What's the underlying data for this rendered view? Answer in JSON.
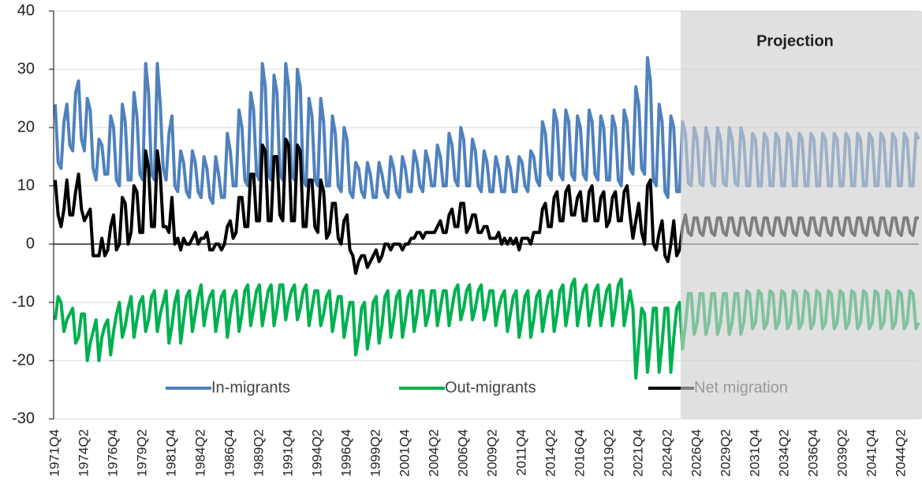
{
  "chart_data": {
    "type": "line",
    "annotation": "Projection",
    "categories": [
      "1971Q4",
      null,
      null,
      null,
      null,
      null,
      null,
      null,
      null,
      null,
      "1974Q2",
      null,
      null,
      null,
      null,
      null,
      null,
      null,
      null,
      null,
      "1976Q4",
      null,
      null,
      null,
      null,
      null,
      null,
      null,
      null,
      null,
      "1979Q2",
      null,
      null,
      null,
      null,
      null,
      null,
      null,
      null,
      null,
      "1981Q4",
      null,
      null,
      null,
      null,
      null,
      null,
      null,
      null,
      null,
      "1984Q2",
      null,
      null,
      null,
      null,
      null,
      null,
      null,
      null,
      null,
      "1986Q4",
      null,
      null,
      null,
      null,
      null,
      null,
      null,
      null,
      null,
      "1989Q2",
      null,
      null,
      null,
      null,
      null,
      null,
      null,
      null,
      null,
      "1991Q4",
      null,
      null,
      null,
      null,
      null,
      null,
      null,
      null,
      null,
      "1994Q2",
      null,
      null,
      null,
      null,
      null,
      null,
      null,
      null,
      null,
      "1996Q4",
      null,
      null,
      null,
      null,
      null,
      null,
      null,
      null,
      null,
      "1999Q2",
      null,
      null,
      null,
      null,
      null,
      null,
      null,
      null,
      null,
      "2001Q4",
      null,
      null,
      null,
      null,
      null,
      null,
      null,
      null,
      null,
      "2004Q2",
      null,
      null,
      null,
      null,
      null,
      null,
      null,
      null,
      null,
      "2006Q4",
      null,
      null,
      null,
      null,
      null,
      null,
      null,
      null,
      null,
      "2009Q2",
      null,
      null,
      null,
      null,
      null,
      null,
      null,
      null,
      null,
      "2011Q4",
      null,
      null,
      null,
      null,
      null,
      null,
      null,
      null,
      null,
      "2014Q2",
      null,
      null,
      null,
      null,
      null,
      null,
      null,
      null,
      null,
      "2016Q4",
      null,
      null,
      null,
      null,
      null,
      null,
      null,
      null,
      null,
      "2019Q2",
      null,
      null,
      null,
      null,
      null,
      null,
      null,
      null,
      null,
      "2021Q4",
      null,
      null,
      null,
      null,
      null,
      null,
      null,
      null,
      null,
      "2024Q2",
      null,
      null,
      null,
      null,
      null,
      null,
      null,
      null,
      null,
      "2026Q4",
      null,
      null,
      null,
      null,
      null,
      null,
      null,
      null,
      null,
      "2029Q2",
      null,
      null,
      null,
      null,
      null,
      null,
      null,
      null,
      null,
      "2031Q4",
      null,
      null,
      null,
      null,
      null,
      null,
      null,
      null,
      null,
      "2034Q2",
      null,
      null,
      null,
      null,
      null,
      null,
      null,
      null,
      null,
      "2036Q4",
      null,
      null,
      null,
      null,
      null,
      null,
      null,
      null,
      null,
      "2039Q2",
      null,
      null,
      null,
      null,
      null,
      null,
      null,
      null,
      null,
      "2041Q4",
      null,
      null,
      null,
      null,
      null,
      null,
      null,
      null,
      null,
      "2044Q2",
      null,
      null,
      null,
      null,
      null,
      null
    ],
    "series": [
      {
        "name": "In-migrants",
        "color": "#4f81bd",
        "values": [
          24,
          14,
          13,
          21,
          24,
          17,
          16,
          26,
          28,
          18,
          16,
          25,
          23,
          13,
          11,
          18,
          17,
          12,
          12,
          22,
          20,
          11,
          10,
          24,
          21,
          11,
          11,
          26,
          22,
          12,
          11,
          31,
          26,
          12,
          11,
          31,
          24,
          13,
          11,
          19,
          22,
          10,
          9,
          16,
          14,
          9,
          8,
          16,
          14,
          9,
          8,
          15,
          13,
          8,
          7,
          15,
          12,
          8,
          8,
          19,
          16,
          10,
          10,
          23,
          20,
          11,
          10,
          26,
          23,
          12,
          11,
          31,
          27,
          12,
          11,
          29,
          26,
          12,
          11,
          31,
          27,
          12,
          11,
          30,
          27,
          11,
          10,
          25,
          22,
          11,
          10,
          25,
          21,
          10,
          10,
          22,
          19,
          10,
          9,
          20,
          18,
          9,
          8,
          14,
          13,
          9,
          8,
          14,
          12,
          8,
          8,
          14,
          12,
          9,
          8,
          15,
          13,
          9,
          8,
          15,
          13,
          9,
          9,
          16,
          14,
          10,
          9,
          16,
          14,
          10,
          10,
          17,
          15,
          10,
          10,
          19,
          17,
          11,
          10,
          20,
          18,
          10,
          10,
          18,
          16,
          10,
          9,
          16,
          14,
          9,
          9,
          15,
          13,
          9,
          9,
          15,
          13,
          9,
          9,
          15,
          14,
          10,
          9,
          16,
          15,
          11,
          10,
          21,
          19,
          12,
          11,
          23,
          21,
          12,
          11,
          23,
          21,
          12,
          11,
          22,
          20,
          12,
          11,
          23,
          21,
          12,
          11,
          22,
          20,
          11,
          11,
          22,
          20,
          11,
          10,
          23,
          21,
          13,
          12,
          27,
          24,
          13,
          12,
          32,
          28,
          11,
          10,
          24,
          21,
          9,
          8,
          22,
          20,
          9,
          9,
          21,
          19,
          10.5,
          10,
          20,
          18,
          10.5,
          10,
          20,
          18,
          10.5,
          10,
          20,
          18,
          10.5,
          10,
          20,
          18,
          10.5,
          10,
          20,
          18,
          10,
          10,
          19,
          18,
          10,
          10,
          19,
          18,
          10,
          10,
          19,
          18,
          10,
          10,
          19,
          18,
          10,
          10,
          19,
          18,
          10,
          10,
          19,
          18,
          10,
          10,
          19,
          18,
          10,
          10,
          19,
          18,
          10,
          10,
          19,
          18,
          10,
          10,
          19,
          18,
          10,
          10,
          19,
          18,
          10,
          10,
          19,
          18,
          10,
          10,
          19,
          18,
          10,
          10,
          19,
          18,
          10,
          10,
          19,
          18
        ]
      },
      {
        "name": "Out-migrants",
        "color": "#00b050",
        "values": [
          -13,
          -9,
          -10,
          -15,
          -13,
          -12,
          -11,
          -17,
          -16,
          -12,
          -12,
          -20,
          -17,
          -15,
          -13,
          -20,
          -16,
          -14,
          -13,
          -19,
          -15,
          -12,
          -10,
          -16,
          -14,
          -11,
          -9,
          -16,
          -13,
          -10,
          -9,
          -15,
          -13,
          -9,
          -8,
          -15,
          -12,
          -10,
          -8,
          -17,
          -14,
          -10,
          -8,
          -17,
          -13,
          -9,
          -8,
          -15,
          -12,
          -9,
          -7,
          -14,
          -11,
          -9,
          -8,
          -15,
          -12,
          -9,
          -8,
          -16,
          -12,
          -9,
          -8,
          -15,
          -12,
          -8,
          -7,
          -14,
          -11,
          -8,
          -7,
          -14,
          -11,
          -8,
          -7,
          -14,
          -11,
          -7,
          -7,
          -13,
          -10,
          -8,
          -7,
          -13,
          -11,
          -8,
          -7,
          -14,
          -11,
          -8,
          -8,
          -14,
          -12,
          -9,
          -8,
          -15,
          -12,
          -9,
          -9,
          -16,
          -13,
          -10,
          -10,
          -19,
          -16,
          -11,
          -10,
          -18,
          -15,
          -10,
          -9,
          -17,
          -14,
          -9,
          -8,
          -16,
          -13,
          -9,
          -8,
          -16,
          -13,
          -9,
          -8,
          -15,
          -12,
          -8,
          -8,
          -14,
          -12,
          -8,
          -8,
          -14,
          -11,
          -8,
          -8,
          -14,
          -11,
          -8,
          -7,
          -13,
          -11,
          -8,
          -7,
          -13,
          -11,
          -8,
          -7,
          -13,
          -11,
          -8,
          -8,
          -14,
          -11,
          -9,
          -8,
          -15,
          -12,
          -9,
          -8,
          -16,
          -13,
          -9,
          -8,
          -16,
          -13,
          -9,
          -8,
          -15,
          -12,
          -9,
          -8,
          -15,
          -12,
          -8,
          -7,
          -14,
          -11,
          -7,
          -6,
          -14,
          -11,
          -8,
          -7,
          -14,
          -11,
          -8,
          -7,
          -14,
          -11,
          -8,
          -7,
          -14,
          -11,
          -7,
          -6,
          -14,
          -11,
          -8,
          -11,
          -23,
          -17,
          -11,
          -12,
          -22,
          -17,
          -11,
          -11,
          -22,
          -17,
          -11,
          -11,
          -22,
          -16,
          -11,
          -10,
          -18,
          -14,
          -8.5,
          -8.5,
          -15.5,
          -13.5,
          -8.5,
          -8.5,
          -15.5,
          -13.5,
          -8.5,
          -8.5,
          -15.5,
          -13.5,
          -8.5,
          -8.5,
          -15.5,
          -13.5,
          -8.5,
          -8.5,
          -15.5,
          -13.5,
          -8,
          -8.5,
          -14.5,
          -13.5,
          -8,
          -8.5,
          -14.5,
          -13.5,
          -8,
          -8.5,
          -14.5,
          -13.5,
          -8,
          -8.5,
          -14.5,
          -13.5,
          -8,
          -8.5,
          -14.5,
          -13.5,
          -8,
          -8.5,
          -14.5,
          -13.5,
          -8,
          -8.5,
          -14.5,
          -13.5,
          -8,
          -8.5,
          -14.5,
          -13.5,
          -8,
          -8.5,
          -14.5,
          -13.5,
          -8,
          -8.5,
          -14.5,
          -13.5,
          -8,
          -8.5,
          -14.5,
          -13.5,
          -8,
          -8.5,
          -14.5,
          -13.5,
          -8,
          -8.5,
          -14.5,
          -13.5,
          -8,
          -8.5,
          -14.5,
          -13.5,
          -8,
          -8.5,
          -14.5,
          -13.5
        ]
      },
      {
        "name": "Net migration",
        "color": "#000000",
        "values": [
          11,
          5,
          3,
          6,
          11,
          5,
          5,
          9,
          12,
          6,
          4,
          5,
          6,
          -2,
          -2,
          -2,
          1,
          -2,
          -1,
          3,
          5,
          -1,
          0,
          8,
          7,
          0,
          2,
          10,
          9,
          2,
          2,
          16,
          13,
          3,
          3,
          16,
          12,
          3,
          3,
          2,
          8,
          0,
          1,
          -1,
          1,
          0,
          0,
          1,
          2,
          0,
          1,
          1,
          2,
          -1,
          -1,
          0,
          0,
          -1,
          0,
          3,
          4,
          1,
          2,
          8,
          8,
          3,
          3,
          12,
          12,
          4,
          4,
          17,
          16,
          4,
          4,
          15,
          15,
          5,
          4,
          18,
          17,
          4,
          4,
          17,
          16,
          3,
          3,
          11,
          11,
          3,
          2,
          11,
          9,
          1,
          2,
          7,
          7,
          1,
          0,
          4,
          5,
          -1,
          -2,
          -5,
          -3,
          -2,
          -2,
          -4,
          -3,
          -2,
          -1,
          -3,
          -2,
          0,
          0,
          -1,
          0,
          0,
          0,
          -1,
          0,
          0,
          1,
          1,
          2,
          2,
          1,
          2,
          2,
          2,
          2,
          3,
          4,
          2,
          2,
          5,
          6,
          3,
          3,
          7,
          7,
          2,
          3,
          5,
          5,
          2,
          2,
          3,
          3,
          1,
          1,
          1,
          2,
          0,
          1,
          0,
          1,
          0,
          1,
          -1,
          1,
          1,
          1,
          0,
          2,
          2,
          2,
          6,
          7,
          3,
          3,
          8,
          9,
          4,
          4,
          9,
          10,
          5,
          5,
          8,
          9,
          4,
          4,
          9,
          10,
          4,
          4,
          8,
          9,
          3,
          4,
          8,
          9,
          4,
          4,
          9,
          10,
          5,
          1,
          4,
          7,
          2,
          0,
          10,
          11,
          0,
          -1,
          2,
          4,
          -2,
          -3,
          0,
          4,
          -2,
          -1,
          3,
          5,
          2,
          1.5,
          4.5,
          4.5,
          2,
          1.5,
          4.5,
          4.5,
          2,
          1.5,
          4.5,
          4.5,
          2,
          1.5,
          4.5,
          4.5,
          2,
          1.5,
          4.5,
          4.5,
          2,
          1.5,
          4.5,
          4.5,
          2,
          1.5,
          4.5,
          4.5,
          2,
          1.5,
          4.5,
          4.5,
          2,
          1.5,
          4.5,
          4.5,
          2,
          1.5,
          4.5,
          4.5,
          2,
          1.5,
          4.5,
          4.5,
          2,
          1.5,
          4.5,
          4.5,
          2,
          1.5,
          4.5,
          4.5,
          2,
          1.5,
          4.5,
          4.5,
          2,
          1.5,
          4.5,
          4.5,
          2,
          1.5,
          4.5,
          4.5,
          2,
          1.5,
          4.5,
          4.5,
          2,
          1.5,
          4.5,
          4.5,
          2,
          1.5,
          4.5,
          4.5,
          2,
          1.5,
          4.5,
          4.5
        ]
      }
    ],
    "ylim": [
      -30,
      40
    ],
    "yticks": [
      -30,
      -20,
      -10,
      0,
      10,
      20,
      30,
      40
    ],
    "grid": true,
    "legend": "inside-bottom"
  }
}
